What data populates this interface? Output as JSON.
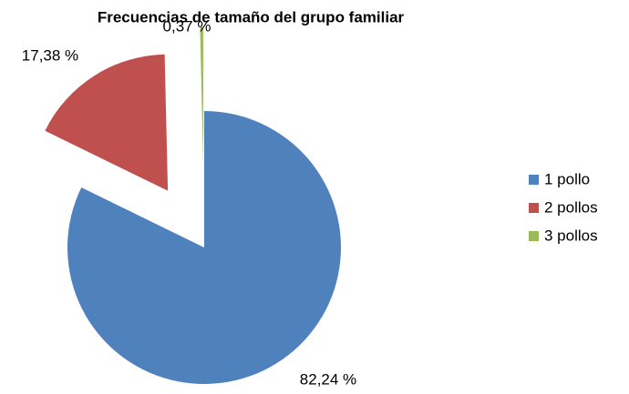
{
  "chart_data": {
    "type": "pie",
    "title": "Frecuencias de tamaño del grupo familiar",
    "categories": [
      "1 pollo",
      "2 pollos",
      "3 pollos"
    ],
    "values": [
      82.24,
      17.38,
      0.37
    ],
    "value_labels": [
      "82,24 %",
      "17,38 %",
      "0,37 %"
    ],
    "colors": [
      "#4f81bd",
      "#c0504d",
      "#9bbb59"
    ],
    "legend": "right"
  }
}
